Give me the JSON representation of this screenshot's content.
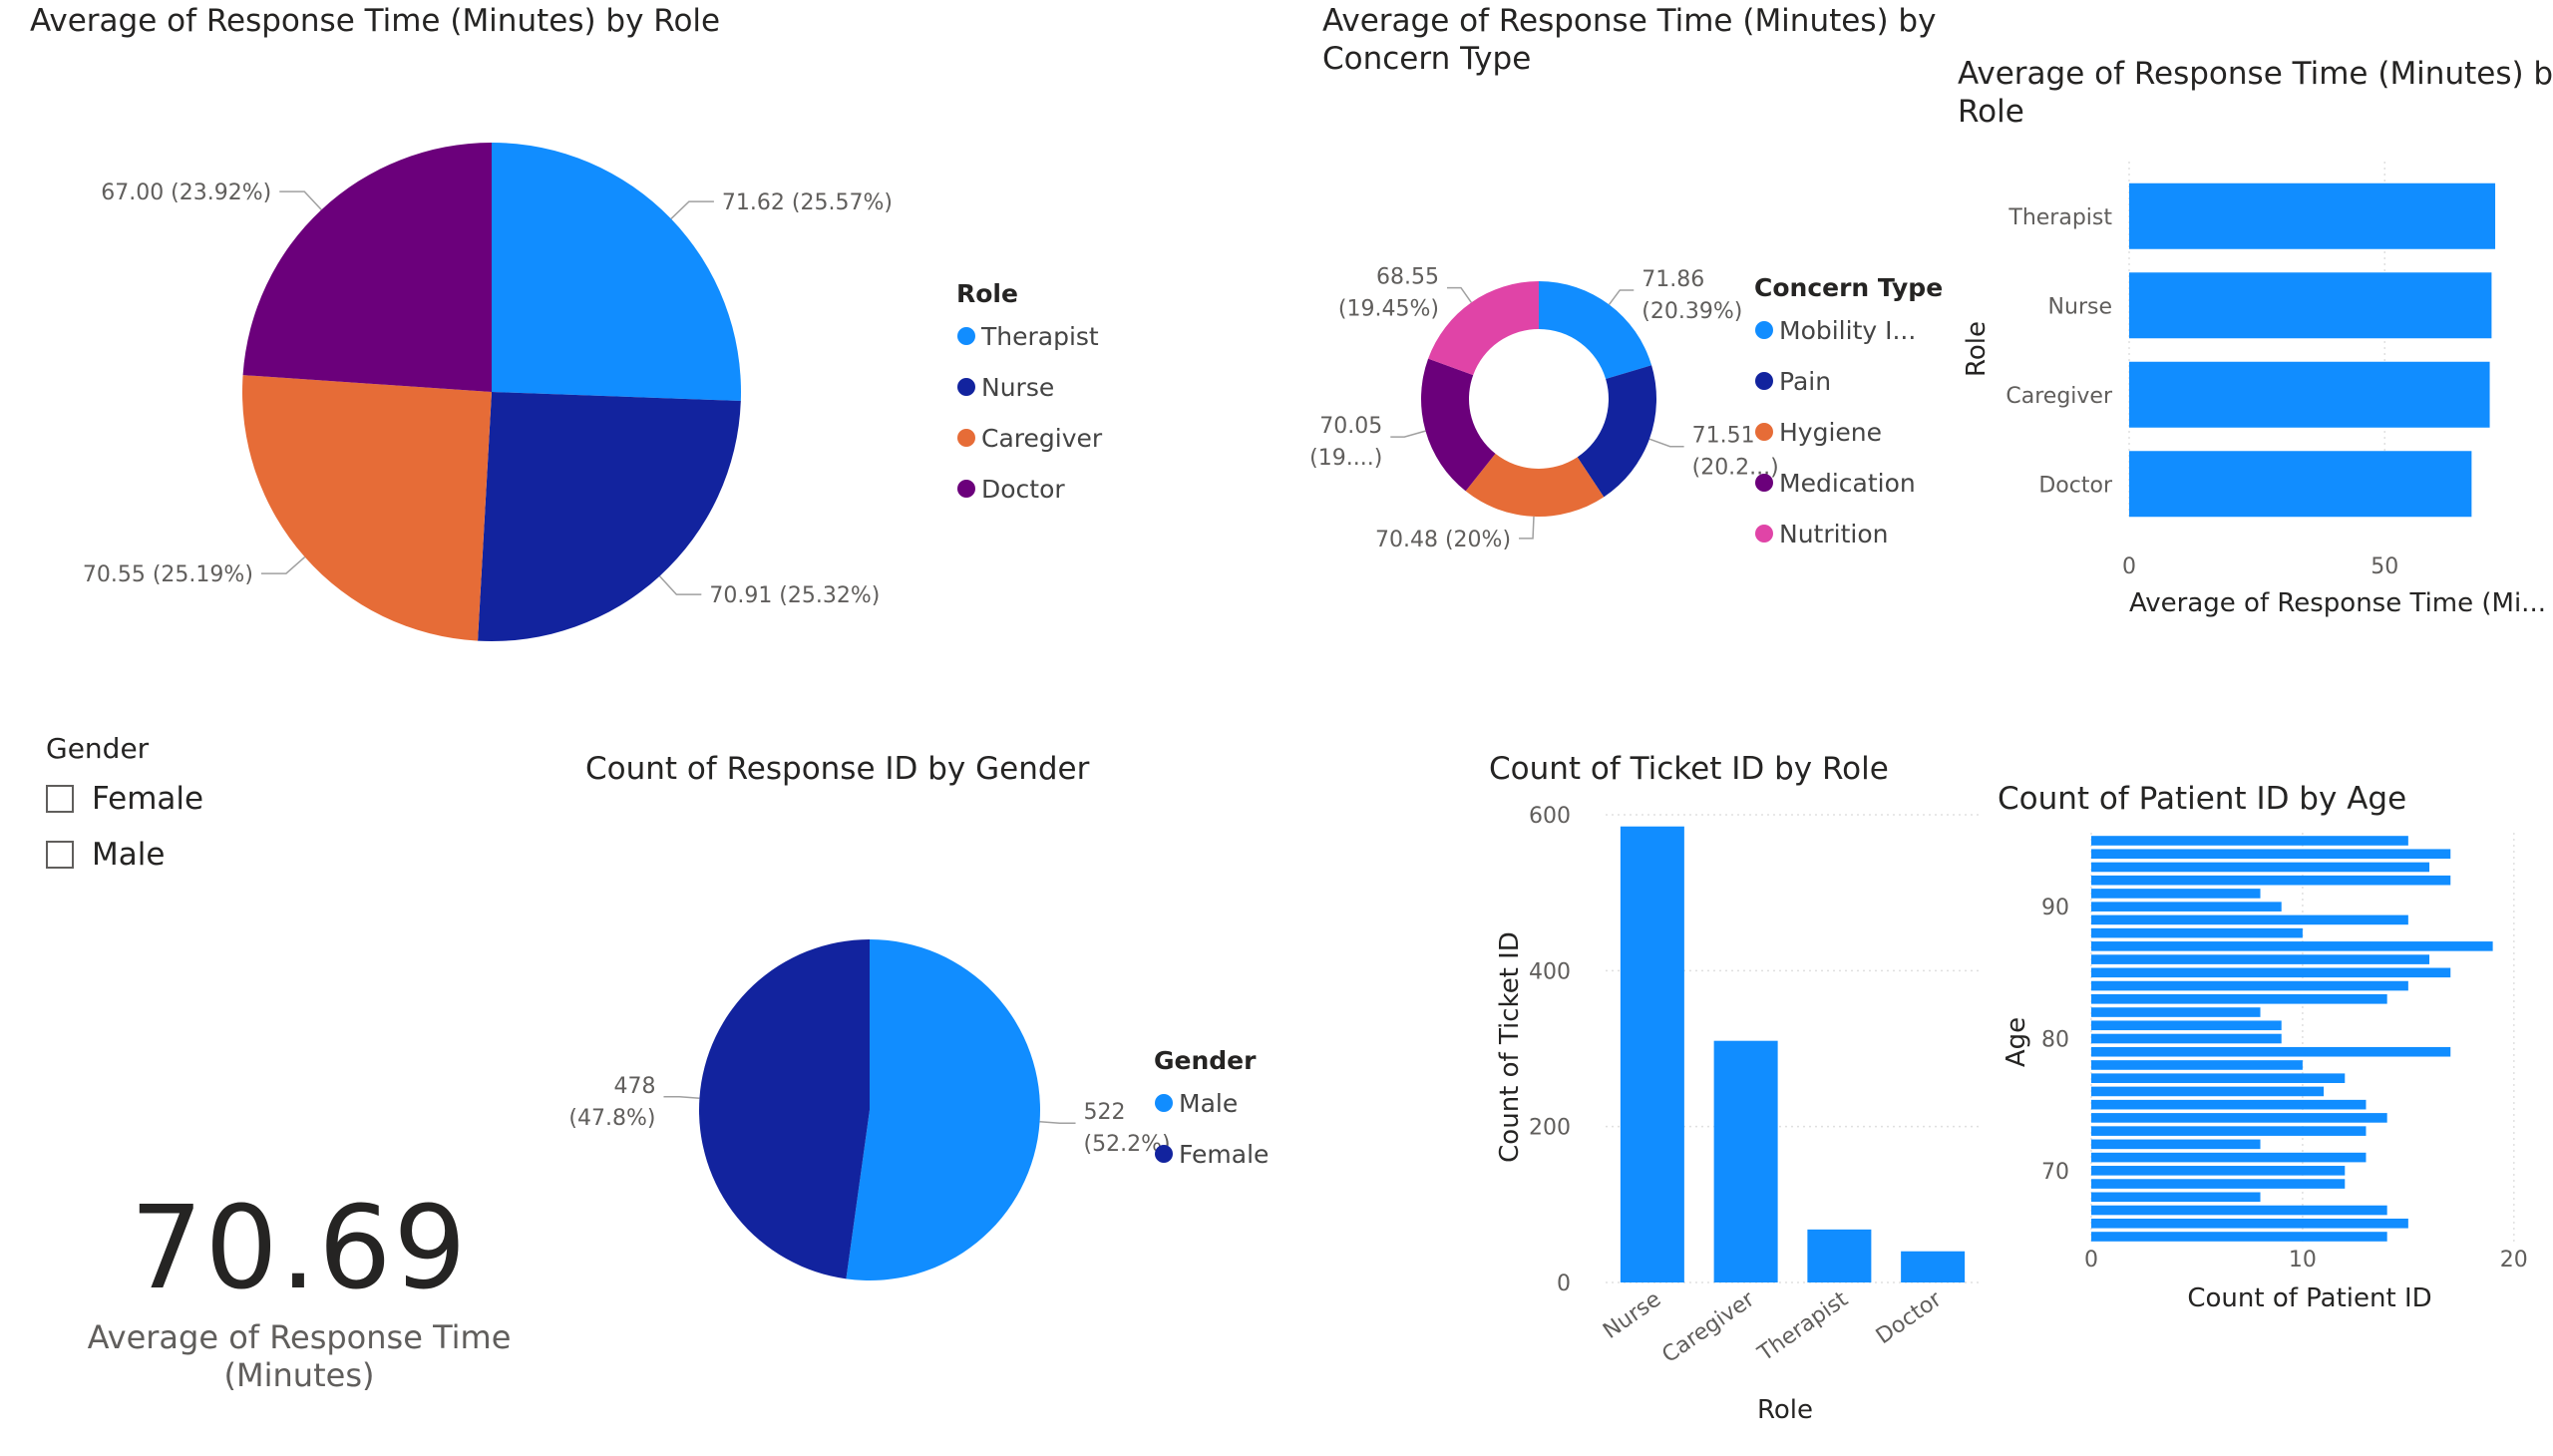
{
  "colors": {
    "light_blue": "#118DFF",
    "dark_blue": "#12239E",
    "orange": "#E66C37",
    "purple": "#6B007B",
    "pink": "#E044A7",
    "text": "#252423",
    "muted": "#605e5c"
  },
  "kpi": {
    "value": "70.69",
    "label": "Average of Response Time (Minutes)"
  },
  "slicer": {
    "title": "Gender",
    "items": [
      "Female",
      "Male"
    ]
  },
  "chart_data": [
    {
      "id": "pie-role",
      "type": "pie",
      "title": "Average of Response Time (Minutes) by Role",
      "legend_title": "Role",
      "legend_position": "right",
      "categories": [
        "Therapist",
        "Nurse",
        "Caregiver",
        "Doctor"
      ],
      "values": [
        71.62,
        70.91,
        70.55,
        67.0
      ],
      "labels": [
        "71.62 (25.57%)",
        "70.91 (25.32%)",
        "70.55 (25.19%)",
        "67.00 (23.92%)"
      ],
      "colors": [
        "#118DFF",
        "#12239E",
        "#E66C37",
        "#6B007B"
      ]
    },
    {
      "id": "donut-concern",
      "type": "pie",
      "title": "Average of Response Time (Minutes) by Concern Type",
      "title_lines": [
        "Average of Response Time (Minutes) by",
        "Concern Type"
      ],
      "legend_title": "Concern Type",
      "legend_position": "right",
      "categories": [
        "Mobility I...",
        "Pain",
        "Hygiene",
        "Medication",
        "Nutrition"
      ],
      "values": [
        71.86,
        71.51,
        70.48,
        70.05,
        68.55
      ],
      "labels": [
        [
          "71.86",
          "(20.39%)"
        ],
        [
          "71.51",
          "(20.2...)"
        ],
        [
          "70.48 (20%)"
        ],
        [
          "70.05",
          "(19....)"
        ],
        [
          "68.55",
          "(19.45%)"
        ]
      ],
      "colors": [
        "#118DFF",
        "#12239E",
        "#E66C37",
        "#6B007B",
        "#E044A7"
      ]
    },
    {
      "id": "bar-role",
      "type": "bar",
      "orientation": "horizontal",
      "title": "Average of Response Time (Minutes) by Role",
      "title_lines": [
        "Average of Response Time (Minutes) by",
        "Role"
      ],
      "categories": [
        "Therapist",
        "Nurse",
        "Caregiver",
        "Doctor"
      ],
      "values": [
        71.62,
        70.91,
        70.55,
        67.0
      ],
      "xlabel": "Average of Response Time (Mi...",
      "ylabel": "Role",
      "xlim": [
        0,
        80
      ],
      "xticks": [
        0,
        50
      ],
      "grid": true
    },
    {
      "id": "pie-gender",
      "type": "pie",
      "title": "Count of Response ID by Gender",
      "legend_title": "Gender",
      "legend_position": "right",
      "categories": [
        "Male",
        "Female"
      ],
      "values": [
        522,
        478
      ],
      "labels": [
        [
          "522",
          "(52.2%)"
        ],
        [
          "478",
          "(47.8%)"
        ]
      ],
      "colors": [
        "#118DFF",
        "#12239E"
      ]
    },
    {
      "id": "col-ticket",
      "type": "bar",
      "orientation": "vertical",
      "title": "Count of Ticket ID by Role",
      "categories": [
        "Nurse",
        "Caregiver",
        "Therapist",
        "Doctor"
      ],
      "values": [
        585,
        310,
        68,
        40
      ],
      "xlabel": "Role",
      "ylabel": "Count of Ticket ID",
      "ylim": [
        0,
        600
      ],
      "yticks": [
        0,
        200,
        400,
        600
      ],
      "grid": true
    },
    {
      "id": "bar-age",
      "type": "bar",
      "orientation": "horizontal",
      "title": "Count of Patient ID by Age",
      "categories": [
        95,
        94,
        93,
        92,
        91,
        90,
        89,
        88,
        87,
        86,
        85,
        84,
        83,
        82,
        81,
        80,
        79,
        78,
        77,
        76,
        75,
        74,
        73,
        72,
        71,
        70,
        69,
        68,
        67,
        66,
        65
      ],
      "values": [
        15,
        17,
        16,
        17,
        8,
        9,
        15,
        10,
        19,
        16,
        17,
        15,
        14,
        8,
        9,
        9,
        17,
        10,
        12,
        11,
        13,
        14,
        13,
        8,
        13,
        12,
        12,
        8,
        14,
        15,
        14
      ],
      "xlabel": "Count of Patient ID",
      "ylabel": "Age",
      "xlim": [
        0,
        21
      ],
      "xticks": [
        0,
        10,
        20
      ],
      "yticks": [
        70,
        80,
        90
      ],
      "grid": true
    }
  ]
}
